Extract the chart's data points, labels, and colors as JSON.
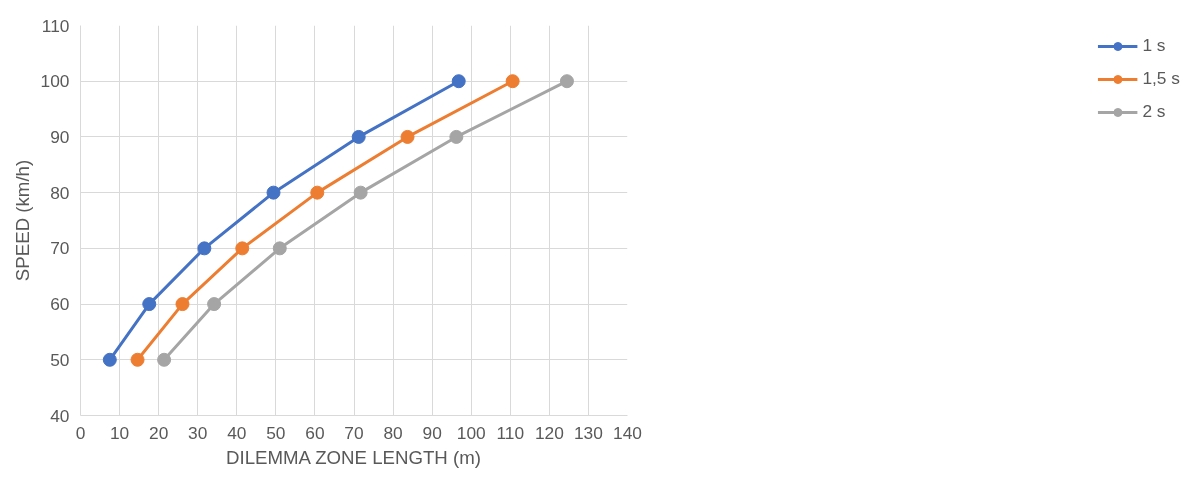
{
  "chart_data": {
    "type": "line",
    "xlabel": "DILEMMA ZONE LENGTH (m)",
    "ylabel": "SPEED (km/h)",
    "series": [
      {
        "name": "1 s",
        "color": "#4472c4",
        "x": [
          7.5,
          17.6,
          31.7,
          49.4,
          71.2,
          96.8
        ],
        "values": [
          50,
          60,
          70,
          80,
          90,
          100
        ]
      },
      {
        "name": "1,5 s",
        "color": "#ed7d31",
        "x": [
          14.6,
          26.1,
          41.4,
          60.6,
          83.7,
          110.6
        ],
        "values": [
          50,
          60,
          70,
          80,
          90,
          100
        ]
      },
      {
        "name": "2 s",
        "color": "#a5a5a5",
        "x": [
          21.4,
          34.2,
          51.0,
          71.7,
          96.2,
          124.5
        ],
        "values": [
          50,
          60,
          70,
          80,
          90,
          100
        ]
      }
    ],
    "xlim": [
      0,
      140
    ],
    "xticks": [
      0,
      10,
      20,
      30,
      40,
      50,
      60,
      70,
      80,
      90,
      100,
      110,
      120,
      130,
      140
    ],
    "ylim": [
      40,
      110
    ],
    "yticks": [
      40,
      50,
      60,
      70,
      80,
      90,
      100,
      110
    ],
    "grid": true,
    "legend": "right",
    "marker": "circle",
    "line_style": "solid"
  }
}
